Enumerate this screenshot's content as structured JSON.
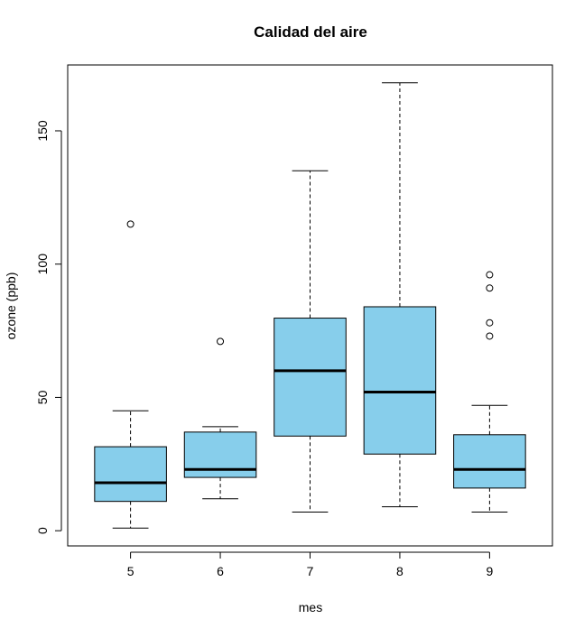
{
  "chart_data": {
    "type": "boxplot",
    "title": "Calidad del aire",
    "xlabel": "mes",
    "ylabel": "ozone (ppb)",
    "categories": [
      "5",
      "6",
      "7",
      "8",
      "9"
    ],
    "boxes": [
      {
        "whisker_low": 1,
        "q1": 11,
        "median": 18,
        "q3": 31.5,
        "whisker_high": 45,
        "outliers": [
          115
        ]
      },
      {
        "whisker_low": 12,
        "q1": 20,
        "median": 23,
        "q3": 37,
        "whisker_high": 39,
        "outliers": [
          71
        ]
      },
      {
        "whisker_low": 7,
        "q1": 35.5,
        "median": 60,
        "q3": 79.75,
        "whisker_high": 135,
        "outliers": []
      },
      {
        "whisker_low": 9,
        "q1": 28.75,
        "median": 52,
        "q3": 84,
        "whisker_high": 168,
        "outliers": []
      },
      {
        "whisker_low": 7,
        "q1": 16,
        "median": 23,
        "q3": 36,
        "whisker_high": 47,
        "outliers": [
          73,
          78,
          91,
          96
        ]
      }
    ],
    "yticks": [
      "0",
      "50",
      "100",
      "150"
    ],
    "ylim": [
      -5.7,
      174.7
    ],
    "fill_color": "#87ceeb",
    "grid": false
  }
}
